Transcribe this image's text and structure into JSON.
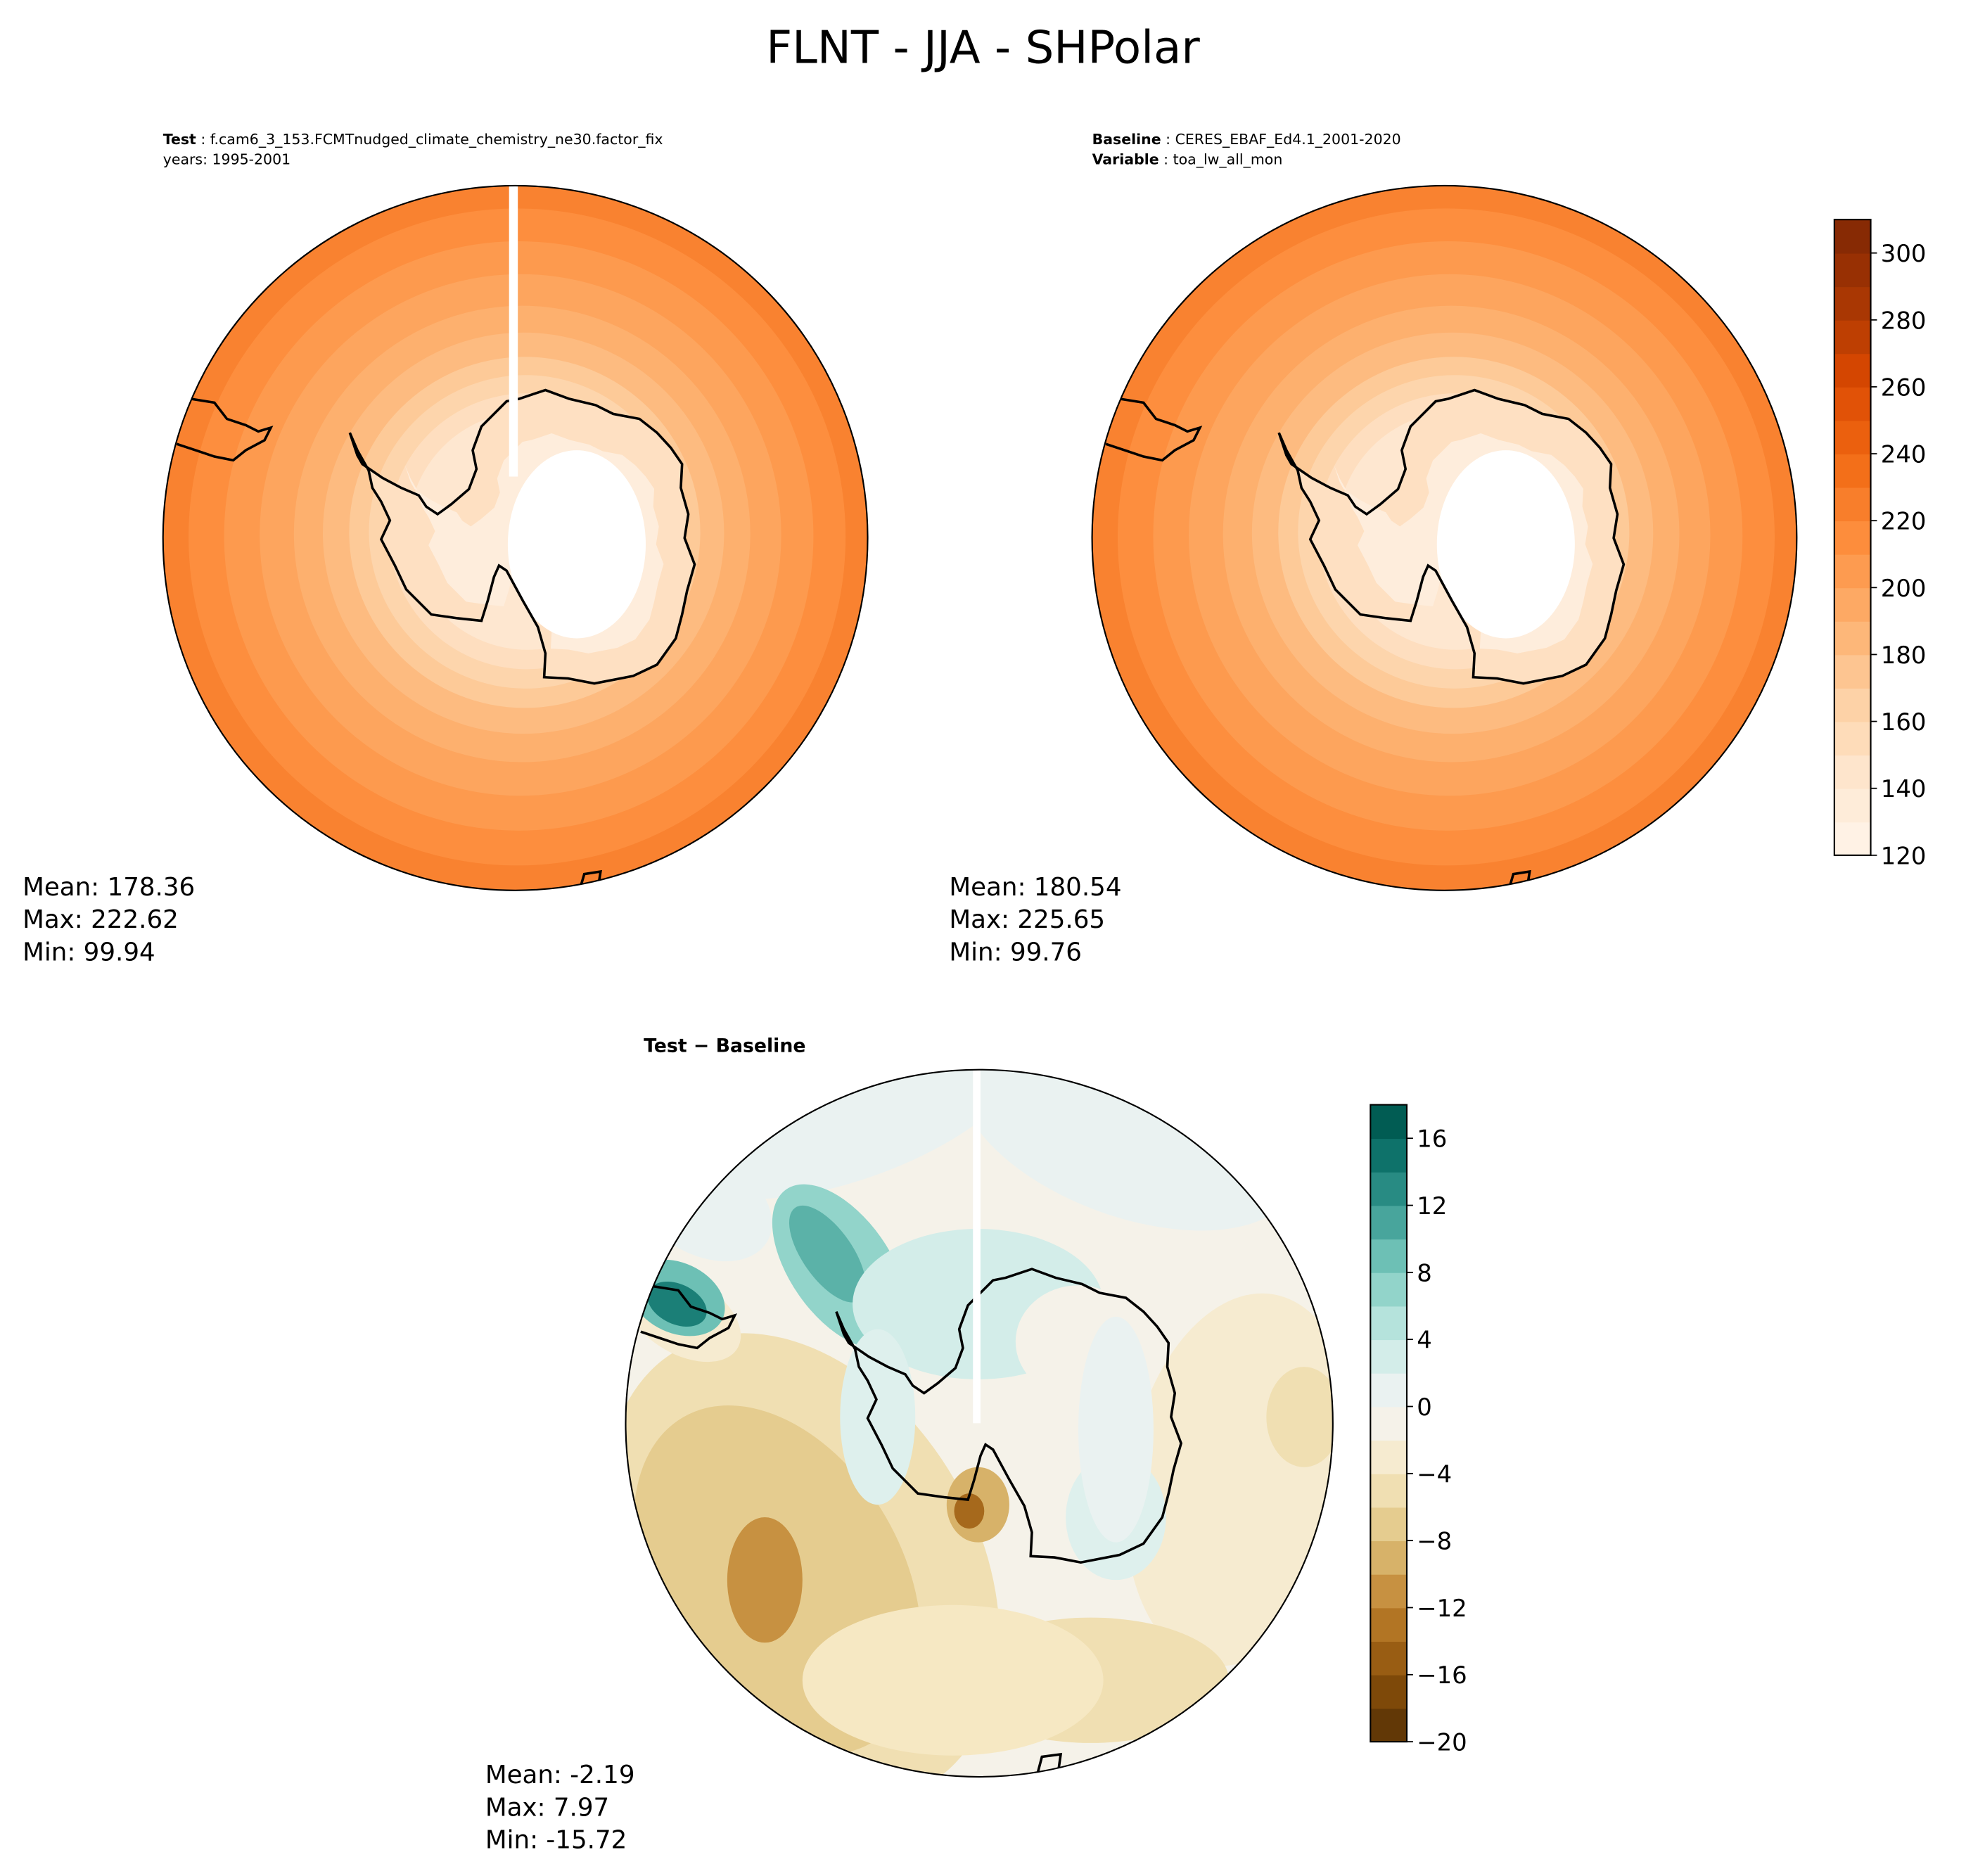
{
  "title": "FLNT - JJA - SHPolar",
  "panels": {
    "test": {
      "label_key": "Test",
      "label_value": "f.cam6_3_153.FCMTnudged_climate_chemistry_ne30.factor_fix",
      "years": "years: 1995-2001",
      "mean": "Mean: 178.36",
      "max": "Max: 222.62",
      "min": "Min: 99.94"
    },
    "baseline": {
      "label_key": "Baseline",
      "label_value": "CERES_EBAF_Ed4.1_2001-2020",
      "variable_key": "Variable",
      "variable_value": "toa_lw_all_mon",
      "mean": "Mean: 180.54",
      "max": "Max: 225.65",
      "min": "Min: 99.76"
    },
    "diff": {
      "title": "Test − Baseline",
      "mean": "Mean: -2.19",
      "max": "Max:  7.97",
      "min": "Min: -15.72"
    }
  },
  "colorbars": {
    "main": {
      "ticks": [
        "120",
        "140",
        "160",
        "180",
        "200",
        "220",
        "240",
        "260",
        "280",
        "300"
      ],
      "min": 120,
      "max": 310,
      "step": 10,
      "colormap": "Oranges"
    },
    "diff": {
      "ticks": [
        "−20",
        "−16",
        "−12",
        "−8",
        "−4",
        "0",
        "4",
        "8",
        "12",
        "16"
      ],
      "min": -20,
      "max": 18,
      "step": 2,
      "colormap": "BrBG"
    }
  },
  "chart_data": [
    {
      "type": "heatmap",
      "title": "Test",
      "projection": "south-polar-stereographic",
      "mean": 178.36,
      "max": 222.62,
      "min": 99.94,
      "clim": [
        120,
        310
      ]
    },
    {
      "type": "heatmap",
      "title": "Baseline",
      "projection": "south-polar-stereographic",
      "mean": 180.54,
      "max": 225.65,
      "min": 99.76,
      "clim": [
        120,
        310
      ]
    },
    {
      "type": "heatmap",
      "title": "Test - Baseline",
      "projection": "south-polar-stereographic",
      "mean": -2.19,
      "max": 7.97,
      "min": -15.72,
      "clim": [
        -20,
        18
      ]
    }
  ]
}
